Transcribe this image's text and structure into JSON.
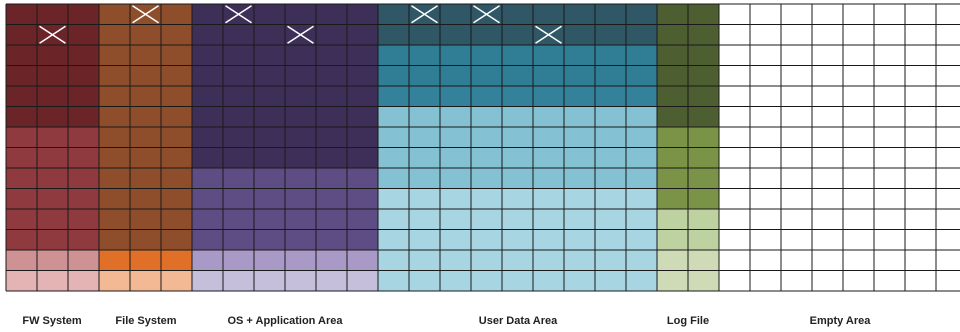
{
  "grid": {
    "columns": 31,
    "rows": 14,
    "line_color": "#1a1a1a",
    "empty_color": "#ffffff"
  },
  "regions": [
    {
      "id": "fw-system",
      "label": "FW System",
      "columns": 3,
      "bands": [
        {
          "rows": 6,
          "color": "#6b2528"
        },
        {
          "rows": 6,
          "color": "#8e3a3f"
        },
        {
          "rows": 1,
          "color": "#ce9295"
        },
        {
          "rows": 1,
          "color": "#e4b3b3"
        }
      ]
    },
    {
      "id": "file-system",
      "label": "File System",
      "columns": 3,
      "bands": [
        {
          "rows": 12,
          "color": "#8f4e2b"
        },
        {
          "rows": 1,
          "color": "#e07028"
        },
        {
          "rows": 1,
          "color": "#f3b894"
        },
        {
          "rows": 0,
          "color": "#f3d0bd"
        }
      ]
    },
    {
      "id": "os-app-area",
      "label": "OS + Application Area",
      "columns": 6,
      "bands": [
        {
          "rows": 8,
          "color": "#3e2f58"
        },
        {
          "rows": 4,
          "color": "#5e4c85"
        },
        {
          "rows": 1,
          "color": "#a999c6"
        },
        {
          "rows": 1,
          "color": "#c6bfdc"
        }
      ]
    },
    {
      "id": "user-data-area",
      "label": "User Data Area",
      "columns": 9,
      "bands": [
        {
          "rows": 2,
          "color": "#2f5766"
        },
        {
          "rows": 2,
          "color": "#2f7e96"
        },
        {
          "rows": 1,
          "color": "#34819b"
        },
        {
          "rows": 4,
          "color": "#84c1d3"
        },
        {
          "rows": 5,
          "color": "#a8d5e2"
        }
      ]
    },
    {
      "id": "log-file",
      "label": "Log File",
      "columns": 2,
      "bands": [
        {
          "rows": 6,
          "color": "#4d5e31"
        },
        {
          "rows": 4,
          "color": "#7a9347"
        },
        {
          "rows": 2,
          "color": "#bdd2a0"
        },
        {
          "rows": 2,
          "color": "#cfdbb6"
        }
      ]
    },
    {
      "id": "empty-area",
      "label": "Empty Area",
      "columns": 8,
      "bands": [
        {
          "rows": 14,
          "color": "#ffffff"
        }
      ]
    }
  ],
  "bad_blocks": [
    {
      "col": 4,
      "row": 0
    },
    {
      "col": 7,
      "row": 0
    },
    {
      "col": 13,
      "row": 0
    },
    {
      "col": 15,
      "row": 0
    },
    {
      "col": 1,
      "row": 1
    },
    {
      "col": 9,
      "row": 1
    },
    {
      "col": 17,
      "row": 1
    }
  ],
  "mark_color": "#ffffff"
}
